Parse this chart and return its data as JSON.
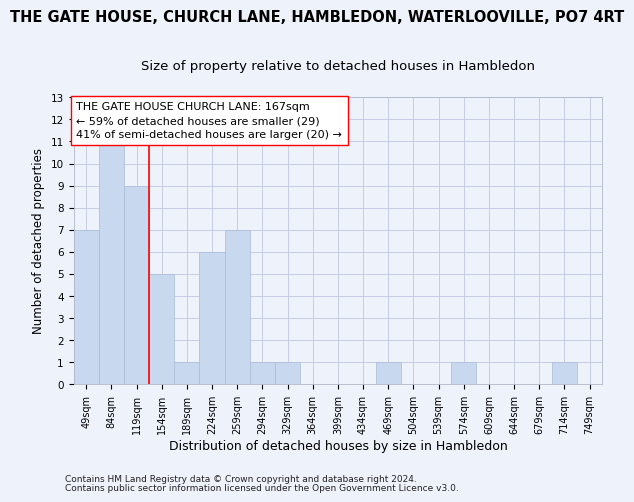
{
  "title": "THE GATE HOUSE, CHURCH LANE, HAMBLEDON, WATERLOOVILLE, PO7 4RT",
  "subtitle": "Size of property relative to detached houses in Hambledon",
  "xlabel": "Distribution of detached houses by size in Hambledon",
  "ylabel": "Number of detached properties",
  "categories": [
    "49sqm",
    "84sqm",
    "119sqm",
    "154sqm",
    "189sqm",
    "224sqm",
    "259sqm",
    "294sqm",
    "329sqm",
    "364sqm",
    "399sqm",
    "434sqm",
    "469sqm",
    "504sqm",
    "539sqm",
    "574sqm",
    "609sqm",
    "644sqm",
    "679sqm",
    "714sqm",
    "749sqm"
  ],
  "values": [
    7,
    11,
    9,
    5,
    1,
    6,
    7,
    1,
    1,
    0,
    0,
    0,
    1,
    0,
    0,
    1,
    0,
    0,
    0,
    1,
    0
  ],
  "bar_color": "#c8d8ee",
  "bar_edgecolor": "#aabbd8",
  "red_line_x": 2.5,
  "annotation_text": "THE GATE HOUSE CHURCH LANE: 167sqm\n← 59% of detached houses are smaller (29)\n41% of semi-detached houses are larger (20) →",
  "ylim": [
    0,
    13
  ],
  "yticks": [
    0,
    1,
    2,
    3,
    4,
    5,
    6,
    7,
    8,
    9,
    10,
    11,
    12,
    13
  ],
  "footnote1": "Contains HM Land Registry data © Crown copyright and database right 2024.",
  "footnote2": "Contains public sector information licensed under the Open Government Licence v3.0.",
  "background_color": "#eef2fb",
  "grid_color": "#c0c8e0",
  "title_fontsize": 10.5,
  "subtitle_fontsize": 9.5,
  "tick_fontsize": 7,
  "ylabel_fontsize": 8.5,
  "xlabel_fontsize": 9,
  "annotation_fontsize": 8,
  "footnote_fontsize": 6.5
}
